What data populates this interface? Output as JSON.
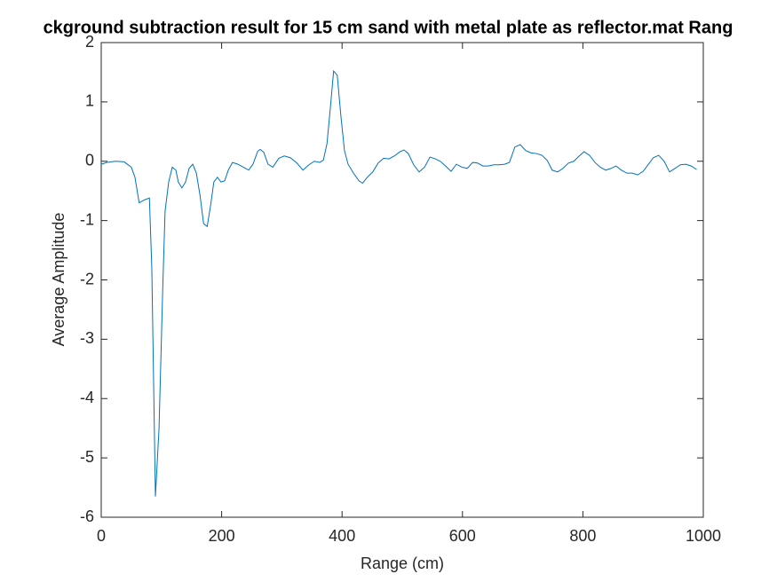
{
  "chart_data": {
    "type": "line",
    "title": "ckground subtraction result for 15 cm sand with metal plate as reflector.mat Rang",
    "xlabel": "Range (cm)",
    "ylabel": "Average Amplitude",
    "xlim": [
      0,
      1000
    ],
    "ylim": [
      -6,
      2
    ],
    "xticks": [
      0,
      200,
      400,
      600,
      800,
      1000
    ],
    "yticks": [
      -6,
      -5,
      -4,
      -3,
      -2,
      -1,
      0,
      1,
      2
    ],
    "grid": false,
    "x": [
      0,
      9,
      24,
      38,
      50,
      56,
      63,
      72,
      80,
      84,
      90,
      96,
      102,
      106,
      112,
      118,
      124,
      128,
      134,
      140,
      146,
      152,
      158,
      164,
      170,
      176,
      182,
      187,
      193,
      199,
      205,
      211,
      218,
      227,
      236,
      245,
      252,
      260,
      264,
      270,
      277,
      285,
      295,
      304,
      314,
      325,
      335,
      345,
      354,
      363,
      369,
      375,
      381,
      386,
      392,
      398,
      404,
      410,
      419,
      428,
      434,
      442,
      451,
      460,
      469,
      478,
      487,
      496,
      503,
      510,
      519,
      528,
      537,
      546,
      555,
      563,
      572,
      581,
      590,
      599,
      608,
      617,
      625,
      634,
      643,
      652,
      661,
      670,
      678,
      687,
      696,
      705,
      714,
      723,
      732,
      741,
      749,
      758,
      767,
      776,
      785,
      794,
      802,
      811,
      820,
      829,
      838,
      847,
      855,
      864,
      873,
      882,
      891,
      900,
      909,
      917,
      926,
      935,
      944,
      953,
      962,
      971,
      980,
      989
    ],
    "series": [
      {
        "name": "Average Amplitude",
        "color": "#0072bd",
        "values": [
          -0.05,
          -0.02,
          0,
          -0.01,
          -0.1,
          -0.27,
          -0.7,
          -0.65,
          -0.62,
          -1.8,
          -5.65,
          -4.5,
          -2.2,
          -0.85,
          -0.35,
          -0.1,
          -0.15,
          -0.35,
          -0.45,
          -0.35,
          -0.12,
          -0.05,
          -0.2,
          -0.57,
          -1.05,
          -1.1,
          -0.72,
          -0.35,
          -0.27,
          -0.35,
          -0.33,
          -0.15,
          -0.02,
          -0.05,
          -0.1,
          -0.15,
          -0.05,
          0.17,
          0.2,
          0.15,
          -0.05,
          -0.1,
          0.05,
          0.09,
          0.06,
          -0.03,
          -0.15,
          -0.06,
          0,
          -0.02,
          0.02,
          0.3,
          0.95,
          1.52,
          1.45,
          0.77,
          0.18,
          -0.05,
          -0.2,
          -0.33,
          -0.37,
          -0.27,
          -0.18,
          -0.03,
          0.05,
          0.04,
          0.09,
          0.16,
          0.19,
          0.13,
          -0.06,
          -0.18,
          -0.1,
          0.07,
          0.04,
          0,
          -0.08,
          -0.17,
          -0.05,
          -0.1,
          -0.12,
          -0.02,
          -0.03,
          -0.08,
          -0.08,
          -0.06,
          -0.06,
          -0.05,
          -0.02,
          0.24,
          0.28,
          0.18,
          0.14,
          0.13,
          0.1,
          0.01,
          -0.15,
          -0.18,
          -0.12,
          -0.03,
          0,
          0.09,
          0.16,
          0.1,
          -0.02,
          -0.1,
          -0.15,
          -0.12,
          -0.08,
          -0.15,
          -0.2,
          -0.2,
          -0.23,
          -0.17,
          -0.05,
          0.06,
          0.1,
          0,
          -0.18,
          -0.12,
          -0.06,
          -0.05,
          -0.08,
          -0.14
        ]
      }
    ]
  }
}
